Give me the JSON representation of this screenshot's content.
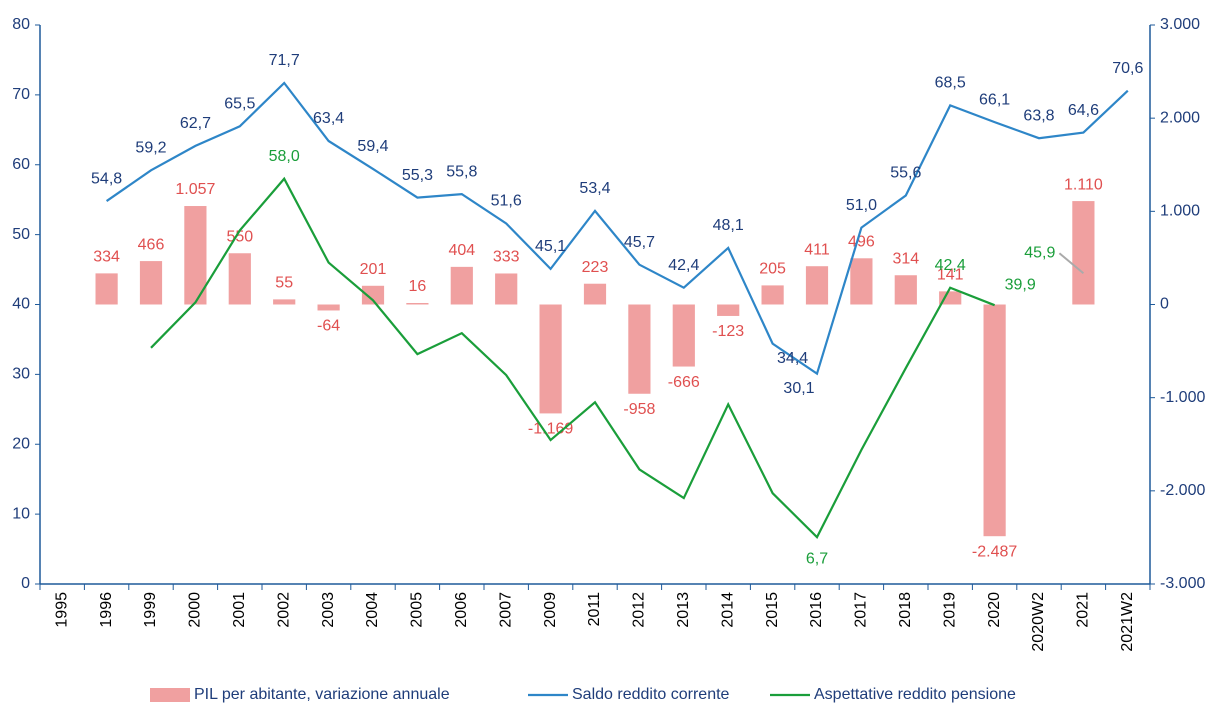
{
  "chart_data": {
    "type": "bar_line",
    "categories": [
      "1995",
      "1996",
      "1999",
      "2000",
      "2001",
      "2002",
      "2003",
      "2004",
      "2005",
      "2006",
      "2007",
      "2009",
      "2011",
      "2012",
      "2013",
      "2014",
      "2015",
      "2016",
      "2017",
      "2018",
      "2019",
      "2020",
      "2020W2",
      "2021",
      "2021W2"
    ],
    "series": [
      {
        "name": "PIL per abitante, variazione annuale",
        "type": "bar",
        "axis": "y2",
        "color": "#f0a0a0",
        "values": [
          null,
          334,
          466,
          1057,
          550,
          55,
          -64,
          201,
          16,
          404,
          333,
          -1169,
          223,
          -958,
          -666,
          -123,
          205,
          411,
          496,
          314,
          141,
          -2487,
          null,
          1110,
          null
        ],
        "value_labels": [
          null,
          "334",
          "466",
          "1.057",
          "550",
          "55",
          "-64",
          "201",
          "16",
          "404",
          "333",
          "-1.169",
          "223",
          "-958",
          "-666",
          "-123",
          "205",
          "411",
          "496",
          "314",
          "141",
          "-2.487",
          null,
          "1.110",
          null
        ]
      },
      {
        "name": "Saldo reddito corrente",
        "type": "line",
        "color": "#2e86c8",
        "values": [
          null,
          54.8,
          59.2,
          62.7,
          65.5,
          71.7,
          63.4,
          59.4,
          55.3,
          55.8,
          51.6,
          45.1,
          53.4,
          45.7,
          42.4,
          48.1,
          34.4,
          30.1,
          51.0,
          55.6,
          68.5,
          66.1,
          63.8,
          64.6,
          70.6
        ],
        "value_labels": [
          null,
          "54,8",
          "59,2",
          "62,7",
          "65,5",
          "71,7",
          "63,4",
          "59,4",
          "55,3",
          "55,8",
          "51,6",
          "45,1",
          "53,4",
          "45,7",
          "42,4",
          "48,1",
          "34,4",
          "30,1",
          "51,0",
          "55,6",
          "68,5",
          "66,1",
          "63,8",
          "64,6",
          "70,6"
        ]
      },
      {
        "name": "Aspettative reddito pensione",
        "type": "line",
        "color": "#1a9e3a",
        "values": [
          null,
          null,
          33.8,
          40.3,
          50.6,
          58.0,
          46.0,
          40.6,
          32.9,
          35.9,
          29.9,
          20.6,
          26.0,
          16.4,
          12.3,
          25.7,
          13.0,
          6.7,
          19.2,
          30.9,
          42.4,
          39.9,
          null,
          45.9,
          null
        ],
        "value_labels": [
          null,
          null,
          null,
          null,
          null,
          "58,0",
          null,
          null,
          null,
          null,
          null,
          null,
          null,
          null,
          null,
          null,
          null,
          "6,7",
          null,
          null,
          "42,4",
          "39,9",
          null,
          "45,9",
          null
        ]
      }
    ],
    "ylim": [
      0,
      80
    ],
    "yticks": [
      0,
      10,
      20,
      30,
      40,
      50,
      60,
      70,
      80
    ],
    "y2lim": [
      -3000,
      3000
    ],
    "y2ticks": [
      {
        "value": -3000,
        "label": "-3.000"
      },
      {
        "value": -2000,
        "label": "-2.000"
      },
      {
        "value": -1000,
        "label": "-1.000"
      },
      0,
      {
        "value": 1000,
        "label": "1.000"
      },
      {
        "value": 2000,
        "label": "2.000"
      },
      {
        "value": 3000,
        "label": "3.000"
      }
    ],
    "legend": "bottom"
  }
}
